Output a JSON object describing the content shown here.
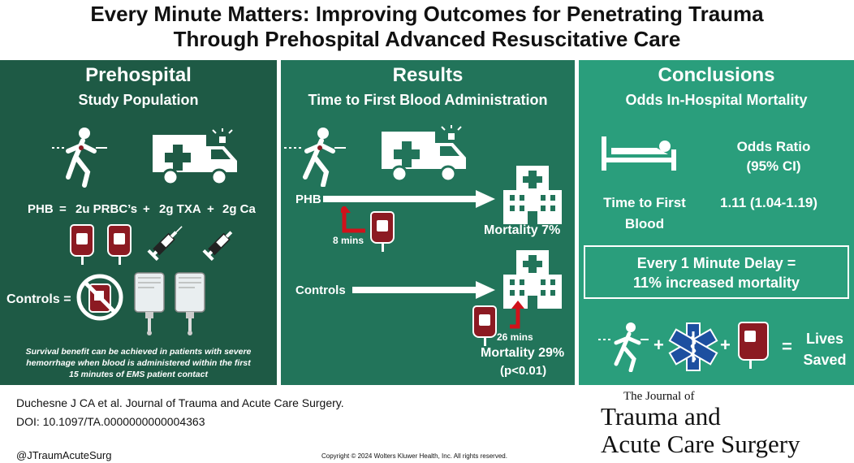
{
  "title": {
    "line1": "Every Minute Matters: Improving Outcomes for Penetrating Trauma",
    "line2": "Through Prehospital Advanced Resuscitative Care"
  },
  "panel1": {
    "heading": "Prehospital",
    "subheading": "Study Population",
    "phb_label": "PHB",
    "eq": "=",
    "prbc": "2u PRBC’s",
    "plus1": "+",
    "txa": "2g TXA",
    "plus2": "+",
    "ca": "2g Ca",
    "controls": "Controls =",
    "note_line1": "Survival benefit can be achieved in patients with severe",
    "note_line2": "hemorrhage when blood is administered within the first",
    "note_line3": "15 minutes of EMS patient contact"
  },
  "panel2": {
    "heading": "Results",
    "subheading": "Time to First Blood Administration",
    "phb_label": "PHB",
    "phb_time": "8 mins",
    "phb_mortality": "Mortality 7%",
    "controls_label": "Controls",
    "controls_time": "26 mins",
    "controls_mortality": "Mortality 29%",
    "p_value": "(p<0.01)"
  },
  "panel3": {
    "heading": "Conclusions",
    "subheading": "Odds In-Hospital Mortality",
    "or_label": "Odds Ratio",
    "ci_label": "(95% CI)",
    "ttfb_line1": "Time to First",
    "ttfb_line2": "Blood",
    "or_value": "1.11 (1.04-1.19)",
    "box_line1": "Every 1 Minute Delay =",
    "box_line2": "11% increased mortality",
    "plus1": "+",
    "plus2": "+",
    "eq": "=",
    "lives": "Lives",
    "saved": "Saved"
  },
  "footer": {
    "citation": "Duchesne J CA et al. Journal of Trauma and Acute Care Surgery.",
    "doi": "DOI: 10.1097/TA.0000000000004363",
    "handle": "@JTraumAcuteSurg",
    "copyright": "Copyright © 2024 Wolters Kluwer Health, Inc. All rights reserved.",
    "journal_line1": "The Journal of",
    "journal_line2": "Trauma and",
    "journal_line3": "Acute Care Surgery"
  },
  "colors": {
    "panel1": "#1e5a45",
    "panel2": "#22745a",
    "panel3": "#2a9e7c",
    "blood": "#8c1a22",
    "arrow_red": "#d0121b"
  },
  "icons": [
    "injured-person-icon",
    "ambulance-icon",
    "blood-bag-icon",
    "syringe-icon",
    "no-symbol-icon",
    "iv-bag-icon",
    "hospital-icon",
    "patient-bed-icon",
    "star-of-life-icon",
    "red-arrow-icon"
  ]
}
